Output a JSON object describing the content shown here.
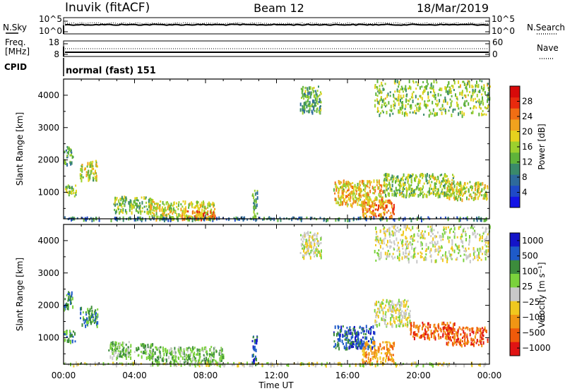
{
  "header": {
    "station": "Inuvik (fitACF)",
    "beam": "Beam 12",
    "date": "18/Mar/2019"
  },
  "top_panels": {
    "nsky_label": "N.Sky",
    "nsky_ticks": [
      "10^5",
      "10^0"
    ],
    "nsearch_label": "N.Search",
    "nsearch_ticks": [
      "10^5",
      "10^0"
    ],
    "freq_label_line1": "Freq.",
    "freq_label_line2": "[MHz]",
    "freq_ticks": [
      "18",
      "8"
    ],
    "nave_label": "Nave",
    "nave_ticks": [
      "60",
      "0"
    ],
    "cpid_label": "CPID",
    "cpid_value": "normal (fast) 151"
  },
  "chart_data": [
    {
      "type": "heatmap",
      "name": "power",
      "ylabel": "Slant Range [km]",
      "ylim": [
        180,
        4500
      ],
      "yticks": [
        1000,
        2000,
        3000,
        4000
      ],
      "xlim": [
        0,
        24
      ],
      "colorbar": {
        "label": "Power [dB]",
        "range": [
          0,
          32
        ],
        "ticks": [
          "4",
          "8",
          "12",
          "16",
          "20",
          "24",
          "28"
        ],
        "colors": [
          "#1414e6",
          "#1f49c8",
          "#2e6a9c",
          "#3a8a6a",
          "#5fb33a",
          "#9cd02e",
          "#e6d21e",
          "#f0a21e",
          "#f06e14",
          "#e82a0e",
          "#d80a0a"
        ]
      },
      "blobs": [
        {
          "t0": 0.0,
          "t1": 0.5,
          "r0": 1900,
          "r1": 2450,
          "v": 11
        },
        {
          "t0": 0.0,
          "t1": 0.7,
          "r0": 900,
          "r1": 1250,
          "v": 15
        },
        {
          "t0": 0.9,
          "t1": 1.9,
          "r0": 1400,
          "r1": 2000,
          "v": 17
        },
        {
          "t0": 2.8,
          "t1": 5.0,
          "r0": 400,
          "r1": 900,
          "v": 14
        },
        {
          "t0": 4.8,
          "t1": 8.5,
          "r0": 200,
          "r1": 750,
          "v": 18
        },
        {
          "t0": 6.5,
          "t1": 8.5,
          "r0": 200,
          "r1": 450,
          "v": 25
        },
        {
          "t0": 10.6,
          "t1": 10.9,
          "r0": 200,
          "r1": 1100,
          "v": 12
        },
        {
          "t0": 15.2,
          "t1": 18.0,
          "r0": 600,
          "r1": 1400,
          "v": 20
        },
        {
          "t0": 16.8,
          "t1": 18.6,
          "r0": 250,
          "r1": 800,
          "v": 25
        },
        {
          "t0": 18.0,
          "t1": 22.0,
          "r0": 900,
          "r1": 1600,
          "v": 15
        },
        {
          "t0": 21.5,
          "t1": 23.9,
          "r0": 800,
          "r1": 1350,
          "v": 18
        },
        {
          "t0": 13.3,
          "t1": 14.5,
          "r0": 3500,
          "r1": 4300,
          "v": 12
        },
        {
          "t0": 17.5,
          "t1": 24.0,
          "r0": 3400,
          "r1": 4500,
          "v": 15
        },
        {
          "t0": 0.0,
          "t1": 24.0,
          "r0": 180,
          "r1": 260,
          "v": 8
        }
      ]
    },
    {
      "type": "heatmap",
      "name": "velocity",
      "ylabel": "Slant Range [km]",
      "ylim": [
        180,
        4500
      ],
      "yticks": [
        1000,
        2000,
        3000,
        4000
      ],
      "xlim": [
        0,
        24
      ],
      "xticks": [
        "00:00",
        "04:00",
        "08:00",
        "12:00",
        "16:00",
        "20:00",
        "00:00"
      ],
      "xlabel": "Time UT",
      "colorbar": {
        "label": "Velocity [m s⁻¹]",
        "ticks": [
          "1000",
          "500",
          "100",
          "25",
          "−25",
          "−100",
          "−500",
          "−1000"
        ],
        "colors": [
          "#1414c8",
          "#1e5ac8",
          "#3c8c3c",
          "#7ad23c",
          "#c8c8c8",
          "#f0c81e",
          "#f09614",
          "#f05a0a",
          "#e01414"
        ]
      },
      "blobs": [
        {
          "t0": 0.0,
          "t1": 0.5,
          "r0": 1900,
          "r1": 2450,
          "v": 2
        },
        {
          "t0": 0.0,
          "t1": 0.7,
          "r0": 900,
          "r1": 1250,
          "v": 2
        },
        {
          "t0": 0.9,
          "t1": 1.9,
          "r0": 1400,
          "r1": 2000,
          "v": 2
        },
        {
          "t0": 2.5,
          "t1": 5.0,
          "r0": 400,
          "r1": 900,
          "v": 3
        },
        {
          "t0": 4.8,
          "t1": 9.0,
          "r0": 200,
          "r1": 750,
          "v": 3
        },
        {
          "t0": 10.6,
          "t1": 10.9,
          "r0": 200,
          "r1": 1100,
          "v": 1
        },
        {
          "t0": 15.2,
          "t1": 17.5,
          "r0": 700,
          "r1": 1400,
          "v": 1
        },
        {
          "t0": 16.8,
          "t1": 18.6,
          "r0": 250,
          "r1": 900,
          "v": 6
        },
        {
          "t0": 17.5,
          "t1": 19.5,
          "r0": 1400,
          "r1": 2200,
          "v": 4
        },
        {
          "t0": 19.5,
          "t1": 22.0,
          "r0": 1000,
          "r1": 1500,
          "v": 7
        },
        {
          "t0": 21.5,
          "t1": 23.9,
          "r0": 800,
          "r1": 1350,
          "v": 7
        },
        {
          "t0": 13.3,
          "t1": 14.5,
          "r0": 3500,
          "r1": 4300,
          "v": 4
        },
        {
          "t0": 17.5,
          "t1": 24.0,
          "r0": 3400,
          "r1": 4500,
          "v": 4
        },
        {
          "t0": 0.0,
          "t1": 24.0,
          "r0": 180,
          "r1": 260,
          "v": 4
        }
      ]
    }
  ]
}
